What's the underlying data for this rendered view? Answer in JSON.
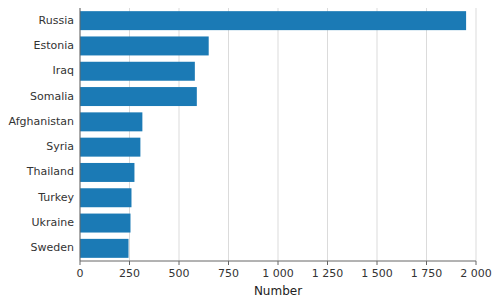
{
  "chart_data": {
    "type": "bar",
    "orientation": "horizontal",
    "categories": [
      "Russia",
      "Estonia",
      "Iraq",
      "Somalia",
      "Afghanistan",
      "Syria",
      "Thailand",
      "Turkey",
      "Ukraine",
      "Sweden"
    ],
    "values": [
      1950,
      650,
      580,
      590,
      315,
      305,
      275,
      260,
      255,
      245
    ],
    "color": "#1b7ab5",
    "xlabel": "Number",
    "xlim": [
      0,
      2000
    ],
    "xticks": [
      0,
      250,
      500,
      750,
      {
        "value": 1000,
        "label": "1 000"
      },
      {
        "value": 1250,
        "label": "1 250"
      },
      {
        "value": 1500,
        "label": "1 500"
      },
      {
        "value": 1750,
        "label": "1 750"
      },
      {
        "value": 2000,
        "label": "2 000"
      }
    ],
    "grid": true
  }
}
